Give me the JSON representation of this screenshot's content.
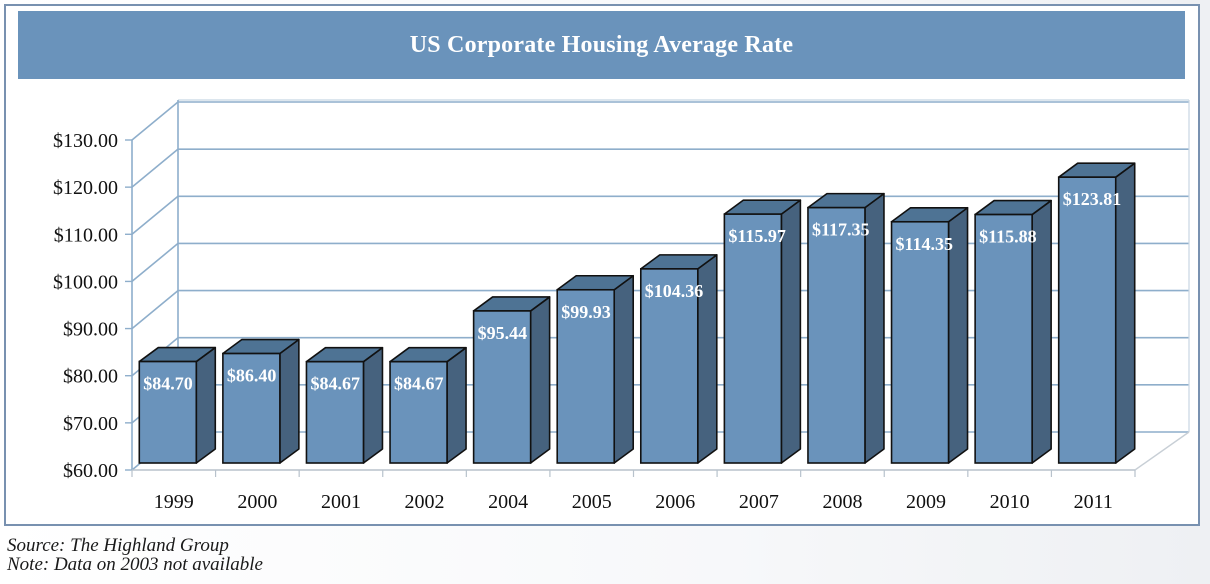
{
  "chart_data": {
    "type": "bar",
    "style": "3d-column",
    "title": "US Corporate  Housing Average Rate",
    "categories": [
      "1999",
      "2000",
      "2001",
      "2002",
      "2004",
      "2005",
      "2006",
      "2007",
      "2008",
      "2009",
      "2010",
      "2011"
    ],
    "values": [
      84.7,
      86.4,
      84.67,
      84.67,
      95.44,
      99.93,
      104.36,
      115.97,
      117.35,
      114.35,
      115.88,
      123.81
    ],
    "data_labels": [
      "$84.70",
      "$86.40",
      "$84.67",
      "$84.67",
      "$95.44",
      "$99.93",
      "$104.36",
      "$115.97",
      "$117.35",
      "$114.35",
      "$115.88",
      "$123.81"
    ],
    "xlabel": "",
    "ylabel": "",
    "ylim": [
      60,
      130
    ],
    "yticks": [
      60,
      70,
      80,
      90,
      100,
      110,
      120,
      130
    ],
    "ytick_labels": [
      "$60.00",
      "$70.00",
      "$80.00",
      "$90.00",
      "$100.00",
      "$110.00",
      "$120.00",
      "$130.00"
    ],
    "grid": true,
    "legend": "none",
    "colors": {
      "bar_front": "#6a93bb",
      "bar_top": "#4e7394",
      "bar_side": "#46627e",
      "grid": "#8eaecb",
      "title_bg": "#6a93bb"
    }
  },
  "footnotes": {
    "source": "Source: The Highland Group",
    "note": "Note: Data on 2003 not available"
  }
}
